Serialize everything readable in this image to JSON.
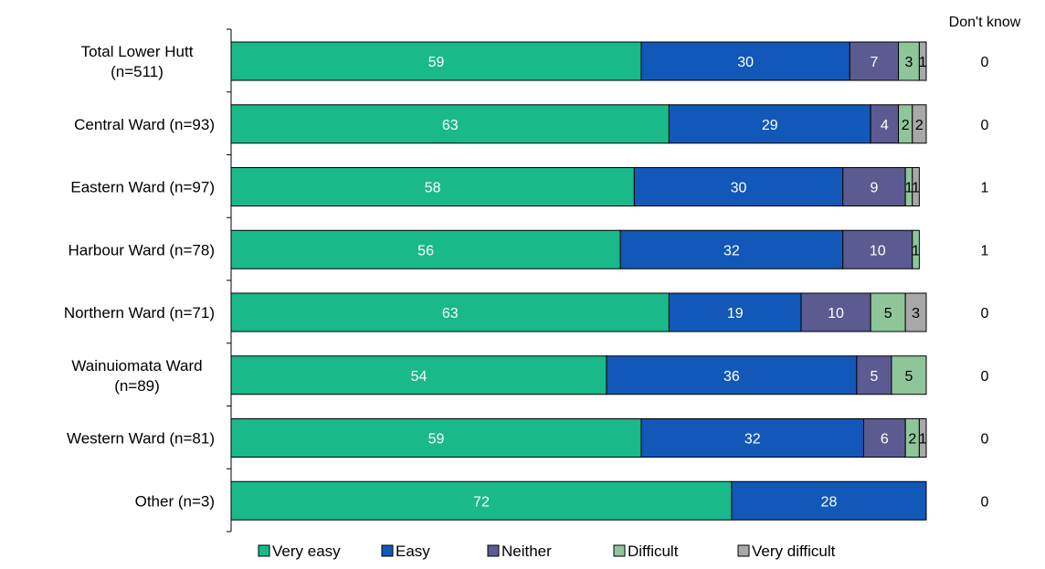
{
  "chart_data": {
    "type": "bar",
    "orientation": "horizontal",
    "stacked": true,
    "categories": [
      [
        "Total Lower Hutt",
        "(n=511)"
      ],
      [
        "Central Ward (n=93)"
      ],
      [
        "Eastern Ward (n=97)"
      ],
      [
        "Harbour Ward (n=78)"
      ],
      [
        "Northern Ward (n=71)"
      ],
      [
        "Wainuiomata Ward",
        "(n=89)"
      ],
      [
        "Western Ward (n=81)"
      ],
      [
        "Other (n=3)"
      ]
    ],
    "series": [
      {
        "name": "Very easy",
        "color": "#19B98A",
        "label_color": "#ffffff",
        "values": [
          59,
          63,
          58,
          56,
          63,
          54,
          59,
          72
        ]
      },
      {
        "name": "Easy",
        "color": "#1258B8",
        "label_color": "#ffffff",
        "values": [
          30,
          29,
          30,
          32,
          19,
          36,
          32,
          28
        ]
      },
      {
        "name": "Neither",
        "color": "#5B5B92",
        "label_color": "#ffffff",
        "values": [
          7,
          4,
          9,
          10,
          10,
          5,
          6,
          0
        ]
      },
      {
        "name": "Difficult",
        "color": "#8EC69A",
        "label_color": "#000000",
        "values": [
          3,
          2,
          1,
          1,
          5,
          5,
          2,
          0
        ]
      },
      {
        "name": "Very difficult",
        "color": "#A8A8A8",
        "label_color": "#000000",
        "values": [
          1,
          2,
          1,
          0,
          3,
          0,
          1,
          0
        ]
      }
    ],
    "extra_column": {
      "header": "Don't know",
      "values": [
        0,
        0,
        1,
        1,
        0,
        0,
        0,
        0
      ]
    },
    "xlim": [
      0,
      100
    ],
    "legend_position": "bottom",
    "grid": false
  }
}
